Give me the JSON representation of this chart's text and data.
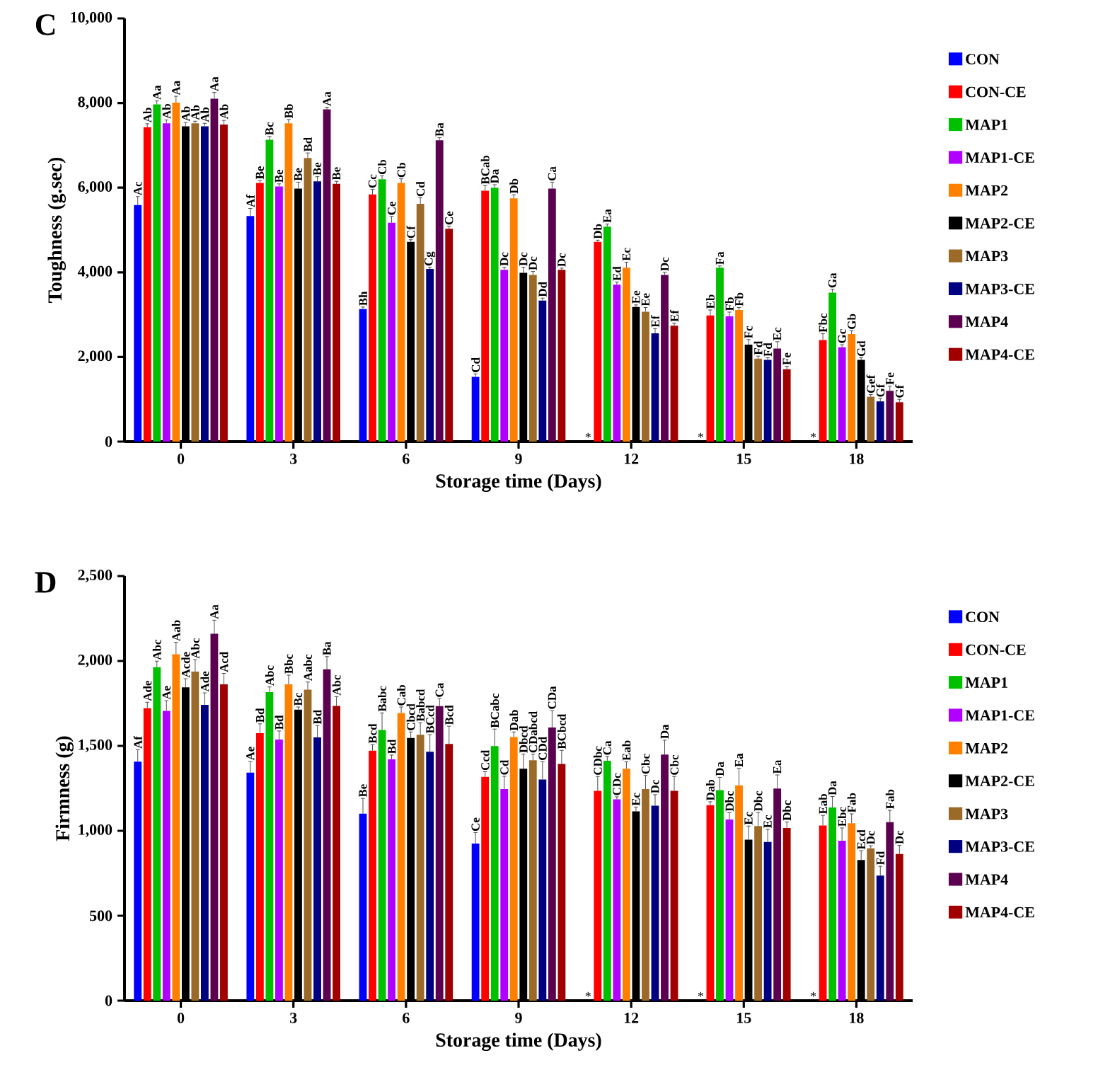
{
  "chart_data": [
    {
      "type": "bar",
      "title": "C",
      "xlabel": "Storage time (Days)",
      "ylabel": "Toughness (g.sec)",
      "categories": [
        "0",
        "3",
        "6",
        "9",
        "12",
        "15",
        "18"
      ],
      "ylim": [
        0,
        10000
      ],
      "yticks": [
        0,
        {
          "value": 2000,
          "label": "2,000"
        },
        {
          "value": 4000,
          "label": "4,000"
        },
        {
          "value": 6000,
          "label": "6,000"
        },
        {
          "value": 8000,
          "label": "8,000"
        },
        {
          "value": 10000,
          "label": "10,000"
        }
      ],
      "legend": "right",
      "series": [
        {
          "name": "CON",
          "color": "#0000ff",
          "values": [
            5590,
            5330,
            3130,
            1530,
            null,
            null,
            null
          ],
          "errors": [
            200,
            180,
            50,
            70,
            null,
            null,
            null
          ],
          "value_labels": [
            "Ac",
            "Af",
            "Bh",
            "Cd",
            "*",
            "*",
            "*"
          ]
        },
        {
          "name": "CON-CE",
          "color": "#ff0000",
          "values": [
            7430,
            6110,
            5840,
            5930,
            4720,
            2980,
            2400
          ],
          "errors": [
            80,
            60,
            120,
            120,
            40,
            130,
            150
          ],
          "value_labels": [
            "Ab",
            "Be",
            "Cc",
            "BCab",
            "Db",
            "Eb",
            "Fbc"
          ]
        },
        {
          "name": "MAP1",
          "color": "#00c000",
          "values": [
            7970,
            7130,
            6200,
            6000,
            5080,
            4110,
            3520
          ],
          "errors": [
            80,
            80,
            80,
            70,
            60,
            40,
            80
          ],
          "value_labels": [
            "Aa",
            "Bc",
            "Cb",
            "Da",
            "Ea",
            "Fa",
            "Ga"
          ]
        },
        {
          "name": "MAP1-CE",
          "color": "#b000ff",
          "values": [
            7520,
            6030,
            5170,
            4060,
            3710,
            2960,
            2230
          ],
          "errors": [
            80,
            60,
            150,
            60,
            60,
            100,
            60
          ],
          "value_labels": [
            "Ab",
            "Be",
            "Ce",
            "Dc",
            "Ed",
            "Fb",
            "Gc"
          ]
        },
        {
          "name": "MAP2",
          "color": "#ff8000",
          "values": [
            8010,
            7520,
            6110,
            5750,
            4110,
            3110,
            2540
          ],
          "errors": [
            150,
            90,
            100,
            80,
            130,
            60,
            80
          ],
          "value_labels": [
            "Aa",
            "Bb",
            "Cb",
            "Db",
            "Ec",
            "Fb",
            "Gb"
          ]
        },
        {
          "name": "MAP2-CE",
          "color": "#000000",
          "values": [
            7450,
            5980,
            4720,
            3990,
            3180,
            2290,
            1930
          ],
          "errors": [
            90,
            150,
            50,
            130,
            50,
            120,
            50
          ],
          "value_labels": [
            "Ab",
            "Be",
            "Cf",
            "Dc",
            "Ee",
            "Fc",
            "Gd"
          ]
        },
        {
          "name": "MAP3",
          "color": "#9c6a28",
          "values": [
            7520,
            6700,
            5620,
            3940,
            3070,
            1960,
            1060
          ],
          "errors": [
            50,
            120,
            140,
            80,
            100,
            60,
            50
          ],
          "value_labels": [
            "Ab",
            "Bd",
            "Cd",
            "Dc",
            "Ee",
            "Fd",
            "Gef"
          ]
        },
        {
          "name": "MAP3-CE",
          "color": "#000080",
          "values": [
            7450,
            6150,
            4080,
            3330,
            2560,
            1930,
            950
          ],
          "errors": [
            70,
            110,
            40,
            60,
            110,
            50,
            70
          ],
          "value_labels": [
            "Ab",
            "Be",
            "Cg",
            "Dd",
            "Ef",
            "Fd",
            "Gf"
          ]
        },
        {
          "name": "MAP4",
          "color": "#5c0050",
          "values": [
            8100,
            7850,
            7120,
            5980,
            3940,
            2200,
            1200
          ],
          "errors": [
            150,
            50,
            60,
            150,
            60,
            160,
            110
          ],
          "value_labels": [
            "Aa",
            "Aa",
            "Ba",
            "Ca",
            "Dc",
            "Ec",
            "Fe"
          ]
        },
        {
          "name": "MAP4-CE",
          "color": "#a00000",
          "values": [
            7490,
            6090,
            5030,
            4060,
            2740,
            1710,
            930
          ],
          "errors": [
            100,
            60,
            60,
            40,
            60,
            70,
            70
          ],
          "value_labels": [
            "Ab",
            "Be",
            "Ce",
            "Dc",
            "Ef",
            "Fe",
            "Gf"
          ]
        }
      ]
    },
    {
      "type": "bar",
      "title": "D",
      "xlabel": "Storage time (Days)",
      "ylabel": "Firmness (g)",
      "categories": [
        "0",
        "3",
        "6",
        "9",
        "12",
        "15",
        "18"
      ],
      "ylim": [
        0,
        2500
      ],
      "yticks": [
        0,
        500,
        {
          "value": 1000,
          "label": "1,000"
        },
        {
          "value": 1500,
          "label": "1,500"
        },
        {
          "value": 2000,
          "label": "2,000"
        },
        {
          "value": 2500,
          "label": "2,500"
        }
      ],
      "legend": "right",
      "series": [
        {
          "name": "CON",
          "color": "#0000ff",
          "values": [
            1407,
            1343,
            1101,
            925,
            null,
            null,
            null
          ],
          "errors": [
            70,
            65,
            90,
            65,
            null,
            null,
            null
          ],
          "value_labels": [
            "Af",
            "Ae",
            "Be",
            "Ce",
            "*",
            "*",
            "*"
          ]
        },
        {
          "name": "CON-CE",
          "color": "#ff0000",
          "values": [
            1722,
            1575,
            1472,
            1318,
            1235,
            1151,
            1031
          ],
          "errors": [
            35,
            55,
            35,
            30,
            85,
            20,
            60
          ],
          "value_labels": [
            "Ade",
            "Bd",
            "Bcd",
            "Ccd",
            "CDbc",
            "Dab",
            "Eab"
          ]
        },
        {
          "name": "MAP1",
          "color": "#00c000",
          "values": [
            1964,
            1817,
            1594,
            1499,
            1413,
            1240,
            1137
          ],
          "errors": [
            35,
            30,
            100,
            100,
            25,
            75,
            65
          ],
          "value_labels": [
            "Abc",
            "Abc",
            "Babc",
            "BCabc",
            "Ca",
            "Da",
            "Da"
          ]
        },
        {
          "name": "MAP1-CE",
          "color": "#b000ff",
          "values": [
            1706,
            1538,
            1421,
            1246,
            1185,
            1067,
            942
          ],
          "errors": [
            60,
            50,
            25,
            75,
            15,
            40,
            75
          ],
          "value_labels": [
            "Ae",
            "Bd",
            "Bd",
            "Cd",
            "CDc",
            "Dbc",
            "Ebc"
          ]
        },
        {
          "name": "MAP2",
          "color": "#ff8000",
          "values": [
            2040,
            1862,
            1694,
            1552,
            1366,
            1268,
            1045
          ],
          "errors": [
            70,
            55,
            35,
            30,
            40,
            100,
            55
          ],
          "value_labels": [
            "Aab",
            "Bbc",
            "Cab",
            "Dab",
            "Eab",
            "Ea",
            "Fab"
          ]
        },
        {
          "name": "MAP2-CE",
          "color": "#000000",
          "values": [
            1845,
            1714,
            1547,
            1366,
            1115,
            948,
            828
          ],
          "errors": [
            50,
            15,
            35,
            85,
            25,
            80,
            55
          ],
          "value_labels": [
            "Acde",
            "Bc",
            "Cbcd",
            "Dbcd",
            "Ec",
            "Ec",
            "Ecd"
          ]
        },
        {
          "name": "MAP3",
          "color": "#9c6a28",
          "values": [
            1937,
            1831,
            1566,
            1416,
            1246,
            1028,
            897
          ],
          "errors": [
            70,
            45,
            70,
            35,
            80,
            80,
            15
          ],
          "value_labels": [
            "Abc",
            "Aabc",
            "Babcd",
            "CDabcd",
            "Cbc",
            "Dbc",
            "Dc"
          ]
        },
        {
          "name": "MAP3-CE",
          "color": "#000080",
          "values": [
            1742,
            1550,
            1466,
            1302,
            1148,
            934,
            736
          ],
          "errors": [
            70,
            70,
            100,
            105,
            65,
            75,
            55
          ],
          "value_labels": [
            "Ade",
            "Bd",
            "BCcd",
            "CDd",
            "Dc",
            "Ec",
            "Fd"
          ]
        },
        {
          "name": "MAP4",
          "color": "#5c0050",
          "values": [
            2160,
            1951,
            1734,
            1608,
            1449,
            1249,
            1051
          ],
          "errors": [
            80,
            75,
            45,
            100,
            85,
            80,
            70
          ],
          "value_labels": [
            "Aa",
            "Ba",
            "Ca",
            "CDa",
            "Da",
            "Ea",
            "Fab"
          ]
        },
        {
          "name": "MAP4-CE",
          "color": "#a00000",
          "values": [
            1862,
            1735,
            1511,
            1394,
            1235,
            1017,
            864
          ],
          "errors": [
            65,
            55,
            105,
            80,
            85,
            35,
            50
          ],
          "value_labels": [
            "Acd",
            "Abc",
            "Bcd",
            "BCbcd",
            "Cbc",
            "Dbc",
            "Dc"
          ]
        }
      ]
    }
  ]
}
